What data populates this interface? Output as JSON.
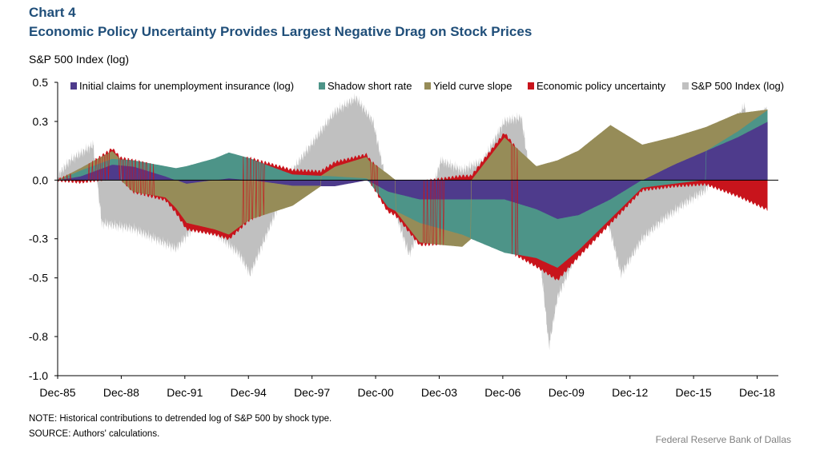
{
  "header": {
    "chart_number": "Chart 4",
    "title": "Economic Policy Uncertainty Provides Largest Negative Drag on Stock Prices"
  },
  "footer": {
    "note": "NOTE: Historical contributions to detrended log of S&P 500 by shock type.",
    "source": "SOURCE: Authors' calculations.",
    "credit": "Federal Reserve Bank of Dallas"
  },
  "colors": {
    "claims": "#4e3b8c",
    "shadow": "#4d9488",
    "yield": "#968c58",
    "epu": "#c8141c",
    "sp500": "#c0c0c0"
  },
  "chart_data": {
    "type": "area",
    "title": "Economic Policy Uncertainty Provides Largest Negative Drag on Stock Prices",
    "ylabel": "S&P 500 Index (log)",
    "xlabel": "",
    "ylim": [
      -1.0,
      0.5
    ],
    "yticks": [
      0.5,
      0.3,
      0.0,
      -0.3,
      -0.5,
      -0.8,
      -1.0
    ],
    "ytick_labels": [
      "0.5",
      "0.3",
      "0.0",
      "-0.3",
      "-0.5",
      "-0.8",
      "-1.0"
    ],
    "xlim": [
      1985.92,
      2019.92
    ],
    "xtick_labels": [
      "Dec-85",
      "Dec-88",
      "Dec-91",
      "Dec-94",
      "Dec-97",
      "Dec-00",
      "Dec-03",
      "Dec-06",
      "Dec-09",
      "Dec-12",
      "Dec-15",
      "Dec-18"
    ],
    "xtick_positions": [
      1985.92,
      1988.92,
      1991.92,
      1994.92,
      1997.92,
      2000.92,
      2003.92,
      2006.92,
      2009.92,
      2012.92,
      2015.92,
      2018.92
    ],
    "legend": [
      "Initial claims for unemployment insurance (log)",
      "Shadow short rate",
      "Yield curve slope",
      "Economic policy uncertainty",
      "S&P 500 Index (log)"
    ],
    "legend_position": "top",
    "series": [
      {
        "name": "Initial claims for unemployment insurance (log)",
        "x": [
          1985.92,
          1987,
          1988.5,
          1989.5,
          1991,
          1992,
          1994,
          1995,
          1997,
          1999,
          2000.5,
          2001.5,
          2003,
          2005,
          2007,
          2008.5,
          2009.5,
          2010.5,
          2012,
          2013.5,
          2015,
          2016.5,
          2018,
          2019.42
        ],
        "values": [
          0,
          0.02,
          0.08,
          0.07,
          0.02,
          -0.02,
          0.01,
          0,
          -0.03,
          -0.03,
          0,
          -0.06,
          -0.1,
          -0.1,
          -0.1,
          -0.15,
          -0.2,
          -0.18,
          -0.1,
          0,
          0.08,
          0.15,
          0.22,
          0.3
        ]
      },
      {
        "name": "Shadow short rate",
        "x": [
          1985.92,
          1987,
          1988.5,
          1989.5,
          1991,
          1992,
          1994,
          1995,
          1997,
          1999,
          2000.5,
          2001.5,
          2003,
          2005,
          2007,
          2008.5,
          2009.5,
          2010.5,
          2012,
          2013.5,
          2015,
          2016.5,
          2018,
          2019.42
        ],
        "values": [
          0,
          0.03,
          0.03,
          0.03,
          0.05,
          0.07,
          0.13,
          0.11,
          0.03,
          0.02,
          0.01,
          -0.08,
          -0.12,
          -0.18,
          -0.27,
          -0.25,
          -0.25,
          -0.18,
          -0.1,
          -0.04,
          -0.02,
          0,
          0.03,
          0.06
        ]
      },
      {
        "name": "Yield curve slope",
        "x": [
          1985.92,
          1987,
          1988.5,
          1989.5,
          1991,
          1992,
          1994,
          1995,
          1997,
          1999,
          2000.5,
          2001.5,
          2003,
          2005,
          2007,
          2008.5,
          2009.5,
          2010.5,
          2012,
          2013.5,
          2015,
          2016.5,
          2018,
          2019.42
        ],
        "values": [
          0,
          0.01,
          0.04,
          -0.06,
          -0.09,
          -0.2,
          -0.28,
          -0.2,
          -0.1,
          0.05,
          0.11,
          0.03,
          -0.1,
          -0.06,
          0.22,
          0.07,
          0.1,
          0.15,
          0.28,
          0.18,
          0.14,
          0.12,
          0.09,
          0
        ]
      },
      {
        "name": "Economic policy uncertainty",
        "x": [
          1985.92,
          1987,
          1988.5,
          1989.5,
          1991,
          1992,
          1994,
          1995,
          1997,
          1999,
          2000.5,
          2001.5,
          2003,
          2005,
          2007,
          2008.5,
          2009.5,
          2010.5,
          2012,
          2013.5,
          2015,
          2016.5,
          2018,
          2019.42
        ],
        "values": [
          0,
          -0.01,
          0.01,
          0,
          -0.01,
          -0.03,
          -0.02,
          0,
          0.02,
          0.02,
          0.01,
          -0.02,
          -0.01,
          0.02,
          0.02,
          -0.04,
          -0.06,
          -0.03,
          -0.02,
          -0.01,
          -0.01,
          -0.02,
          -0.08,
          -0.15
        ]
      },
      {
        "name": "S&P 500 Index (log)",
        "x": [
          1985.92,
          1986.5,
          1987.6,
          1988,
          1989.5,
          1990.5,
          1991.5,
          1992.5,
          1993.5,
          1994.5,
          1995,
          1996,
          1997,
          1998,
          1999,
          2000,
          2000.8,
          2001.5,
          2002.5,
          2003.2,
          2004,
          2005,
          2006,
          2007,
          2007.8,
          2008.5,
          2009.1,
          2009.5,
          2010.5,
          2011.5,
          2012.5,
          2013.5,
          2014.5,
          2015.5,
          2016.5,
          2017.5,
          2018.3,
          2018.9,
          2019.3,
          2019.42
        ],
        "values": [
          0.02,
          0.1,
          0.18,
          -0.22,
          -0.25,
          -0.3,
          -0.35,
          -0.22,
          -0.28,
          -0.38,
          -0.48,
          -0.22,
          0.05,
          0.2,
          0.35,
          0.42,
          0.3,
          -0.05,
          -0.38,
          -0.2,
          0.1,
          0.05,
          0.1,
          0.3,
          0.32,
          -0.2,
          -0.85,
          -0.6,
          -0.35,
          -0.05,
          -0.48,
          -0.3,
          -0.2,
          -0.12,
          -0.05,
          0.2,
          0.38,
          0.15,
          0.38,
          0.32
        ]
      }
    ]
  }
}
